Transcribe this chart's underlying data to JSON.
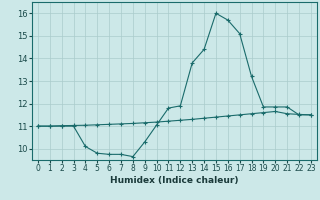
{
  "xlabel": "Humidex (Indice chaleur)",
  "xlim": [
    -0.5,
    23.5
  ],
  "ylim": [
    9.5,
    16.5
  ],
  "xticks": [
    0,
    1,
    2,
    3,
    4,
    5,
    6,
    7,
    8,
    9,
    10,
    11,
    12,
    13,
    14,
    15,
    16,
    17,
    18,
    19,
    20,
    21,
    22,
    23
  ],
  "yticks": [
    10,
    11,
    12,
    13,
    14,
    15,
    16
  ],
  "background_color": "#cce8e8",
  "grid_color": "#aacccc",
  "line_color": "#1a6b6b",
  "curve1_x": [
    0,
    1,
    2,
    3,
    4,
    5,
    6,
    7,
    8,
    9,
    10,
    11,
    12,
    13,
    14,
    15,
    16,
    17,
    18,
    19,
    20,
    21,
    22,
    23
  ],
  "curve1_y": [
    11.0,
    11.0,
    11.0,
    11.0,
    10.1,
    9.8,
    9.75,
    9.75,
    9.65,
    10.3,
    11.05,
    11.8,
    11.9,
    13.8,
    14.4,
    16.0,
    15.7,
    15.1,
    13.2,
    11.85,
    11.85,
    11.85,
    11.5,
    11.5
  ],
  "curve2_x": [
    0,
    1,
    2,
    3,
    4,
    5,
    6,
    7,
    8,
    9,
    10,
    11,
    12,
    13,
    14,
    15,
    16,
    17,
    18,
    19,
    20,
    21,
    22,
    23
  ],
  "curve2_y": [
    11.0,
    11.0,
    11.02,
    11.03,
    11.04,
    11.06,
    11.08,
    11.1,
    11.12,
    11.15,
    11.18,
    11.22,
    11.26,
    11.3,
    11.35,
    11.4,
    11.45,
    11.5,
    11.55,
    11.6,
    11.65,
    11.55,
    11.52,
    11.5
  ]
}
